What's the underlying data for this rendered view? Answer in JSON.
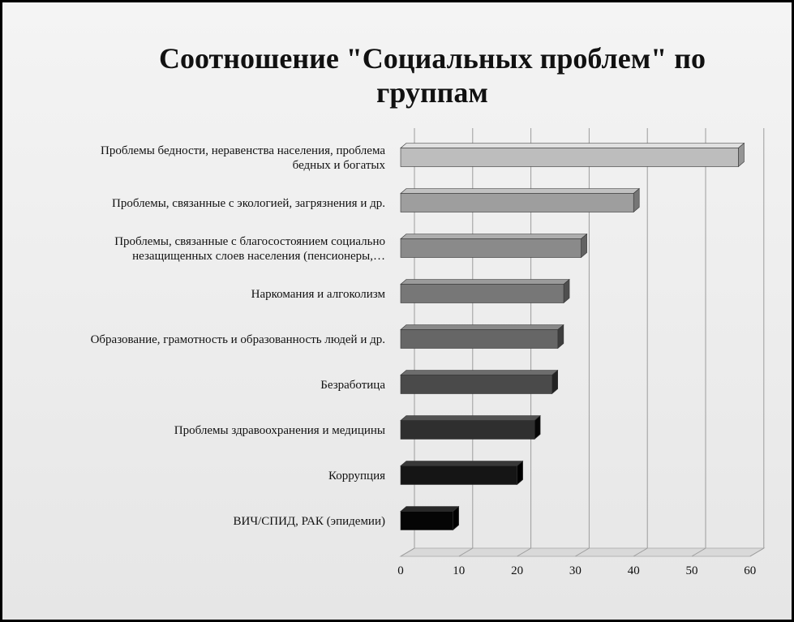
{
  "chart_data": {
    "type": "bar",
    "orientation": "horizontal",
    "title_lines": [
      "Соотношение \"Социальных проблем\" по",
      "группам"
    ],
    "categories": [
      [
        "Проблемы бедности, неравенства населения, проблема",
        "бедных и богатых"
      ],
      [
        "Проблемы, связанные с экологией, загрязнения и др."
      ],
      [
        "Проблемы, связанные с благосостоянием социально",
        "незащищенных  слоев населения (пенсионеры,…"
      ],
      [
        "Наркомания и алгоколизм"
      ],
      [
        "Образование, грамотность и образованность людей и др."
      ],
      [
        "Безработица"
      ],
      [
        "Проблемы здравоохранения и медицины"
      ],
      [
        "Коррупция"
      ],
      [
        "ВИЧ/СПИД,  РАК (эпидемии)"
      ]
    ],
    "values": [
      58,
      40,
      31,
      28,
      27,
      26,
      23,
      20,
      9
    ],
    "bar_colors": [
      "#bdbdbd",
      "#9e9e9e",
      "#8a8a8a",
      "#777777",
      "#666666",
      "#4a4a4a",
      "#2f2f2f",
      "#151515",
      "#050505"
    ],
    "x_ticks": [
      "0",
      "10",
      "20",
      "30",
      "40",
      "50",
      "60"
    ],
    "xlim": [
      0,
      60
    ],
    "grid": true,
    "legend": "none",
    "style": "3d"
  }
}
